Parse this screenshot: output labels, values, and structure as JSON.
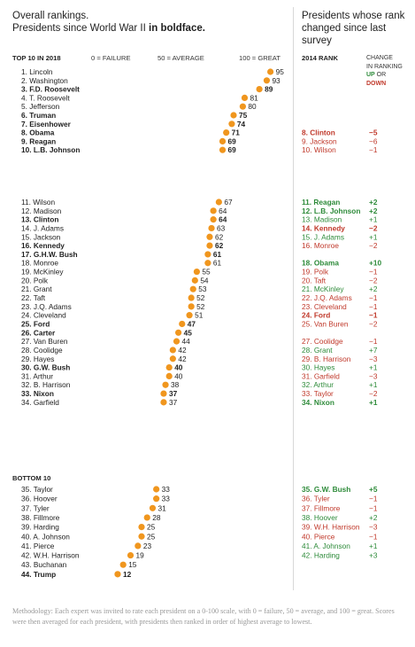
{
  "header": {
    "left_title": "Overall rankings.",
    "left_subtitle_pre": "Presidents since World War II ",
    "left_subtitle_bold": "in boldface.",
    "right_title": "Presidents whose rank changed since last survey"
  },
  "columns": {
    "top10": "TOP 10 IN 2018",
    "scale_0": "0 = FAILURE",
    "scale_50": "50 = AVERAGE",
    "scale_100": "100 = GREAT",
    "rank2014": "2014 RANK",
    "change_l1": "CHANGE",
    "change_l2": "IN RANKING",
    "change_up": "UP",
    "change_or": " OR",
    "change_down": "DOWN",
    "bottom10": "BOTTOM 10"
  },
  "colors": {
    "dot": "#f0961e",
    "up": "#2e8b3a",
    "down": "#c0392b",
    "neutral": "#333333"
  },
  "methodology": "Methodology: Each expert was invited to rate each president on a 0-100 scale, with 0 = failure, 50 = average, and 100 = great. Scores were then averaged for each president, with presidents then ranked in order of highest average to lowest.",
  "chart_data": {
    "type": "scatter",
    "xlim": [
      0,
      100
    ],
    "presidents": [
      {
        "label": "1. Lincoln",
        "score": 95,
        "bold": false
      },
      {
        "label": "2. Washington",
        "score": 93,
        "bold": false
      },
      {
        "label": "3. F.D. Roosevelt",
        "score": 89,
        "bold": true
      },
      {
        "label": "4. T. Roosevelt",
        "score": 81,
        "bold": false
      },
      {
        "label": "5. Jefferson",
        "score": 80,
        "bold": false
      },
      {
        "label": "6. Truman",
        "score": 75,
        "bold": true
      },
      {
        "label": "7. Eisenhower",
        "score": 74,
        "bold": true
      },
      {
        "label": "8. Obama",
        "score": 71,
        "bold": true
      },
      {
        "label": "9. Reagan",
        "score": 69,
        "bold": true
      },
      {
        "label": "10. L.B. Johnson",
        "score": 69,
        "bold": true
      },
      {
        "label": "11. Wilson",
        "score": 67,
        "bold": false
      },
      {
        "label": "12. Madison",
        "score": 64,
        "bold": false
      },
      {
        "label": "13. Clinton",
        "score": 64,
        "bold": true
      },
      {
        "label": "14. J. Adams",
        "score": 63,
        "bold": false
      },
      {
        "label": "15. Jackson",
        "score": 62,
        "bold": false
      },
      {
        "label": "16. Kennedy",
        "score": 62,
        "bold": true
      },
      {
        "label": "17. G.H.W. Bush",
        "score": 61,
        "bold": true
      },
      {
        "label": "18. Monroe",
        "score": 61,
        "bold": false
      },
      {
        "label": "19. McKinley",
        "score": 55,
        "bold": false
      },
      {
        "label": "20. Polk",
        "score": 54,
        "bold": false
      },
      {
        "label": "21. Grant",
        "score": 53,
        "bold": false
      },
      {
        "label": "22. Taft",
        "score": 52,
        "bold": false
      },
      {
        "label": "23. J.Q. Adams",
        "score": 52,
        "bold": false
      },
      {
        "label": "24. Cleveland",
        "score": 51,
        "bold": false
      },
      {
        "label": "25. Ford",
        "score": 47,
        "bold": true
      },
      {
        "label": "26. Carter",
        "score": 45,
        "bold": true
      },
      {
        "label": "27. Van Buren",
        "score": 44,
        "bold": false
      },
      {
        "label": "28. Coolidge",
        "score": 42,
        "bold": false
      },
      {
        "label": "29. Hayes",
        "score": 42,
        "bold": false
      },
      {
        "label": "30. G.W. Bush",
        "score": 40,
        "bold": true
      },
      {
        "label": "31. Arthur",
        "score": 40,
        "bold": false
      },
      {
        "label": "32. B. Harrison",
        "score": 38,
        "bold": false
      },
      {
        "label": "33. Nixon",
        "score": 37,
        "bold": true
      },
      {
        "label": "34. Garfield",
        "score": 37,
        "bold": false
      },
      {
        "label": "35. Taylor",
        "score": 33,
        "bold": false
      },
      {
        "label": "36. Hoover",
        "score": 33,
        "bold": false
      },
      {
        "label": "37. Tyler",
        "score": 31,
        "bold": false
      },
      {
        "label": "38. Fillmore",
        "score": 28,
        "bold": false
      },
      {
        "label": "39. Harding",
        "score": 25,
        "bold": false
      },
      {
        "label": "40. A. Johnson",
        "score": 25,
        "bold": false
      },
      {
        "label": "41. Pierce",
        "score": 23,
        "bold": false
      },
      {
        "label": "42. W.H. Harrison",
        "score": 19,
        "bold": false
      },
      {
        "label": "43. Buchanan",
        "score": 15,
        "bold": false
      },
      {
        "label": "44. Trump",
        "score": 12,
        "bold": true
      }
    ],
    "changes": [
      {
        "row": 8,
        "label": "8. Clinton",
        "change": "−5",
        "dir": "down",
        "bold": true
      },
      {
        "row": 9,
        "label": "9. Jackson",
        "change": "−6",
        "dir": "down",
        "bold": false
      },
      {
        "row": 10,
        "label": "10. Wilson",
        "change": "−1",
        "dir": "down",
        "bold": false
      },
      {
        "row": 11,
        "label": "11. Reagan",
        "change": "+2",
        "dir": "up",
        "bold": true
      },
      {
        "row": 12,
        "label": "12. L.B. Johnson",
        "change": "+2",
        "dir": "up",
        "bold": true
      },
      {
        "row": 13,
        "label": "13. Madison",
        "change": "+1",
        "dir": "up",
        "bold": false
      },
      {
        "row": 14,
        "label": "14. Kennedy",
        "change": "−2",
        "dir": "down",
        "bold": true
      },
      {
        "row": 15,
        "label": "15. J. Adams",
        "change": "+1",
        "dir": "up",
        "bold": false
      },
      {
        "row": 16,
        "label": "16. Monroe",
        "change": "−2",
        "dir": "down",
        "bold": false
      },
      {
        "row": 18,
        "label": "18. Obama",
        "change": "+10",
        "dir": "up",
        "bold": true
      },
      {
        "row": 19,
        "label": "19. Polk",
        "change": "−1",
        "dir": "down",
        "bold": false
      },
      {
        "row": 20,
        "label": "20. Taft",
        "change": "−2",
        "dir": "down",
        "bold": false
      },
      {
        "row": 21,
        "label": "21. McKinley",
        "change": "+2",
        "dir": "up",
        "bold": false
      },
      {
        "row": 22,
        "label": "22. J.Q. Adams",
        "change": "−1",
        "dir": "down",
        "bold": false
      },
      {
        "row": 23,
        "label": "23. Cleveland",
        "change": "−1",
        "dir": "down",
        "bold": false
      },
      {
        "row": 24,
        "label": "24. Ford",
        "change": "−1",
        "dir": "down",
        "bold": true
      },
      {
        "row": 25,
        "label": "25. Van Buren",
        "change": "−2",
        "dir": "down",
        "bold": false
      },
      {
        "row": 27,
        "label": "27. Coolidge",
        "change": "−1",
        "dir": "down",
        "bold": false
      },
      {
        "row": 28,
        "label": "28. Grant",
        "change": "+7",
        "dir": "up",
        "bold": false
      },
      {
        "row": 29,
        "label": "29. B. Harrison",
        "change": "−3",
        "dir": "down",
        "bold": false
      },
      {
        "row": 30,
        "label": "30. Hayes",
        "change": "+1",
        "dir": "up",
        "bold": false
      },
      {
        "row": 31,
        "label": "31. Garfield",
        "change": "−3",
        "dir": "down",
        "bold": false
      },
      {
        "row": 32,
        "label": "32. Arthur",
        "change": "+1",
        "dir": "up",
        "bold": false
      },
      {
        "row": 33,
        "label": "33. Taylor",
        "change": "−2",
        "dir": "down",
        "bold": false
      },
      {
        "row": 34,
        "label": "34. Nixon",
        "change": "+1",
        "dir": "up",
        "bold": true
      },
      {
        "row": 35,
        "label": "35. G.W. Bush",
        "change": "+5",
        "dir": "up",
        "bold": true
      },
      {
        "row": 36,
        "label": "36. Tyler",
        "change": "−1",
        "dir": "down",
        "bold": false
      },
      {
        "row": 37,
        "label": "37. Fillmore",
        "change": "−1",
        "dir": "down",
        "bold": false
      },
      {
        "row": 38,
        "label": "38. Hoover",
        "change": "+2",
        "dir": "up",
        "bold": false
      },
      {
        "row": 39,
        "label": "39. W.H. Harrison",
        "change": "−3",
        "dir": "down",
        "bold": false
      },
      {
        "row": 40,
        "label": "40. Pierce",
        "change": "−1",
        "dir": "down",
        "bold": false
      },
      {
        "row": 41,
        "label": "41. A. Johnson",
        "change": "+1",
        "dir": "up",
        "bold": false
      },
      {
        "row": 42,
        "label": "42. Harding",
        "change": "+3",
        "dir": "up",
        "bold": false
      }
    ]
  }
}
